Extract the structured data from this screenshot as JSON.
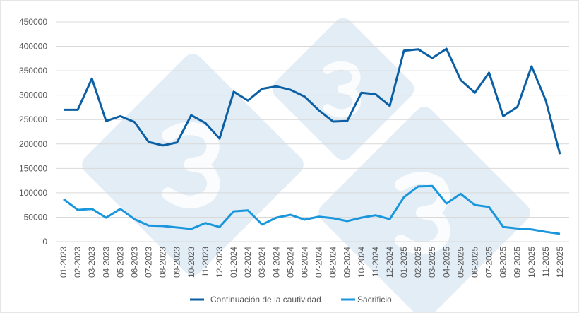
{
  "chart_data": {
    "type": "line",
    "title": "",
    "xlabel": "",
    "ylabel": "",
    "ylim": [
      0,
      450000
    ],
    "yticks": [
      "0",
      "50000",
      "100000",
      "150000",
      "200000",
      "250000",
      "300000",
      "350000",
      "400000",
      "450000"
    ],
    "grid": true,
    "legend_position": "bottom",
    "categories": [
      "01-2023",
      "02-2023",
      "03-2023",
      "04-2023",
      "05-2023",
      "06-2023",
      "07-2023",
      "08-2023",
      "09-2023",
      "10-2023",
      "11-2023",
      "12-2023",
      "01-2024",
      "02-2024",
      "03-2024",
      "04-2024",
      "05-2024",
      "06-2024",
      "07-2024",
      "08-2024",
      "09-2024",
      "10-2024",
      "11-2024",
      "12-2024",
      "01-2025",
      "02-2025",
      "03-2025",
      "04-2025",
      "05-2025",
      "06-2025",
      "07-2025",
      "08-2025",
      "09-2025",
      "10-2025",
      "11-2025",
      "12-2025"
    ],
    "series": [
      {
        "name": "Continuación de la cautividad",
        "color": "#0b5fa5",
        "values": [
          270000,
          270000,
          334000,
          247000,
          257000,
          245000,
          204000,
          197000,
          203000,
          259000,
          243000,
          211000,
          307000,
          289000,
          313000,
          318000,
          311000,
          297000,
          269000,
          246000,
          247000,
          305000,
          302000,
          278000,
          391000,
          394000,
          376000,
          395000,
          331000,
          305000,
          346000,
          257000,
          276000,
          359000,
          289000,
          179000
        ]
      },
      {
        "name": "Sacrificio",
        "color": "#1a96dc",
        "values": [
          87000,
          65000,
          67000,
          49000,
          67000,
          46000,
          33000,
          32000,
          29000,
          26000,
          38000,
          30000,
          62000,
          64000,
          35000,
          49000,
          55000,
          45000,
          51000,
          48000,
          42000,
          49000,
          54000,
          46000,
          91000,
          113000,
          114000,
          78000,
          98000,
          75000,
          71000,
          30000,
          27000,
          25000,
          20000,
          16000
        ]
      }
    ]
  },
  "watermark": {
    "text": "333",
    "color": "#e3edf6"
  }
}
